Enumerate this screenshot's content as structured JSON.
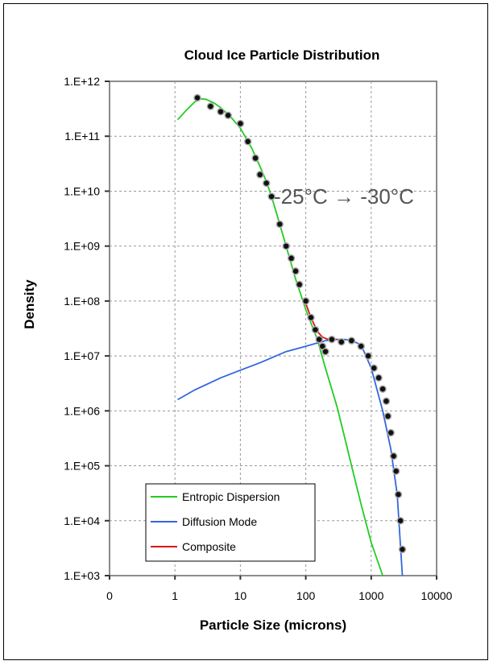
{
  "chart_data": {
    "type": "scatter",
    "title": "Cloud Ice Particle Distribution",
    "xlabel": "Particle Size (microns)",
    "ylabel": "Density",
    "x_scale": "log",
    "y_scale": "log",
    "xlim": [
      0.1,
      10000
    ],
    "ylim": [
      1000,
      1000000000000
    ],
    "x_tick_labels": [
      "0",
      "1",
      "10",
      "100",
      "1000",
      "10000"
    ],
    "x_tick_values": [
      0.1,
      1,
      10,
      100,
      1000,
      10000
    ],
    "y_tick_labels": [
      "1.E+03",
      "1.E+04",
      "1.E+05",
      "1.E+06",
      "1.E+07",
      "1.E+08",
      "1.E+09",
      "1.E+10",
      "1.E+11",
      "1.E+12"
    ],
    "y_tick_values": [
      1000,
      10000,
      100000,
      1000000,
      10000000,
      100000000,
      1000000000,
      10000000000,
      100000000000,
      1000000000000
    ],
    "grid": true,
    "legend_position": "bottom-left",
    "annotation": "-25°C → -30°C",
    "series": [
      {
        "name": "Entropic Dispersion",
        "kind": "line",
        "color": "#22cc22",
        "x": [
          1.1,
          1.5,
          2,
          2.5,
          3,
          4,
          5,
          7,
          10,
          15,
          20,
          25,
          30,
          40,
          50,
          70,
          100,
          150,
          200,
          300,
          400,
          500,
          700,
          1000,
          1500
        ],
        "y": [
          200000000000,
          300000000000,
          420000000000,
          480000000000,
          470000000000,
          400000000000,
          330000000000,
          230000000000,
          140000000000,
          60000000000,
          28000000000,
          15000000000,
          8000000000,
          2500000000,
          1000000000,
          250000000,
          70000000,
          20000000,
          6000000,
          1200000,
          300000,
          100000,
          20000,
          4000,
          1000
        ]
      },
      {
        "name": "Diffusion Mode",
        "kind": "line",
        "color": "#3366dd",
        "x": [
          1.1,
          2,
          5,
          10,
          20,
          50,
          100,
          200,
          300,
          400,
          500,
          700,
          1000,
          1500,
          2000,
          2500,
          3000
        ],
        "y": [
          1600000,
          2400000,
          4000000,
          5500000,
          7500000,
          12000000,
          15000000,
          19000000,
          20000000,
          20000000,
          19000000,
          16000000,
          6000000,
          1000000,
          200000,
          30000,
          1000
        ]
      },
      {
        "name": "Composite",
        "kind": "line",
        "color": "#dd1111",
        "x": [
          100,
          120,
          150,
          180,
          220,
          260,
          300
        ],
        "y": [
          90000000,
          50000000,
          28000000,
          22000000,
          20000000,
          20000000,
          20000000
        ]
      },
      {
        "name": "",
        "kind": "points",
        "color": "#111111",
        "x": [
          2.2,
          3.5,
          5,
          6.5,
          10,
          13,
          17,
          20,
          25,
          30,
          40,
          50,
          60,
          70,
          80,
          100,
          120,
          140,
          160,
          180,
          200,
          250,
          350,
          500,
          700,
          900,
          1100,
          1300,
          1500,
          1700,
          1800,
          2000,
          2200,
          2400,
          2600,
          2800,
          3000
        ],
        "y": [
          500000000000,
          350000000000,
          280000000000,
          240000000000,
          170000000000,
          80000000000,
          40000000000,
          20000000000,
          14000000000,
          8000000000,
          2500000000,
          1000000000,
          600000000,
          350000000,
          200000000,
          100000000,
          50000000,
          30000000,
          20000000,
          15000000,
          12000000,
          20000000,
          18000000,
          19000000,
          15000000,
          10000000,
          6000000,
          4000000,
          2500000,
          1500000,
          800000,
          400000,
          150000,
          80000,
          30000,
          10000,
          3000
        ]
      }
    ]
  }
}
